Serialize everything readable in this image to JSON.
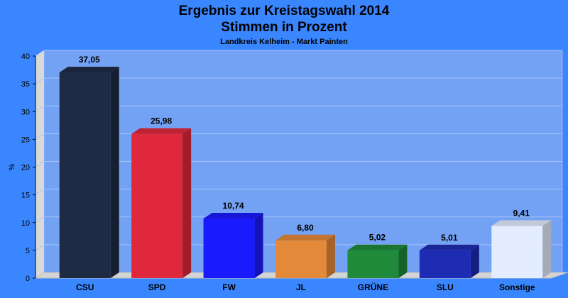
{
  "chart_data": {
    "type": "bar",
    "title_line1": "Ergebnis zur Kreistagswahl 2014",
    "title_line2": "Stimmen in Prozent",
    "subtitle": "Landkreis Kelheim - Markt Painten",
    "ylabel": "%",
    "xlabel": "",
    "ylim": [
      0,
      40
    ],
    "yticks": [
      0,
      5,
      10,
      15,
      20,
      25,
      30,
      35,
      40
    ],
    "grid": true,
    "legend": "none",
    "categories": [
      "CSU",
      "SPD",
      "FW",
      "JL",
      "GRÜNE",
      "SLU",
      "Sonstige"
    ],
    "values": [
      37.05,
      25.98,
      10.74,
      6.8,
      5.02,
      5.01,
      9.41
    ],
    "value_labels": [
      "37,05",
      "25,98",
      "10,74",
      "6,80",
      "5,02",
      "5,01",
      "9,41"
    ],
    "colors": [
      "#1f2a44",
      "#e0283c",
      "#1a1aff",
      "#e38a3a",
      "#1f8a3a",
      "#1e2bb3",
      "#e4ecff"
    ],
    "background_color": "#3a86ff",
    "plot_color": "#73a2f5"
  }
}
